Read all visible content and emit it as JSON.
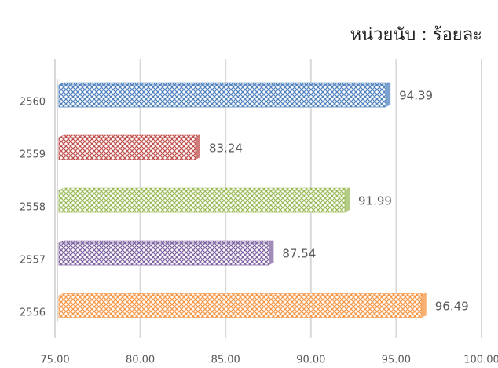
{
  "chart_data": {
    "type": "barh",
    "annotation": "หน่วยนับ : ร้อยละ",
    "categories": [
      "2560",
      "2559",
      "2558",
      "2557",
      "2556"
    ],
    "values": [
      94.39,
      83.24,
      91.99,
      87.54,
      96.49
    ],
    "colors": [
      "#4f81bd",
      "#c0504d",
      "#9bbb59",
      "#8064a2",
      "#f79646"
    ],
    "xlim": [
      75,
      100
    ],
    "xticks": [
      {
        "value": 75,
        "label": "75.00"
      },
      {
        "value": 80,
        "label": "80.00"
      },
      {
        "value": 85,
        "label": "85.00"
      },
      {
        "value": 90,
        "label": "90.00"
      },
      {
        "value": 95,
        "label": "95.00"
      },
      {
        "value": 100,
        "label": "100.00"
      }
    ],
    "grid": true
  }
}
